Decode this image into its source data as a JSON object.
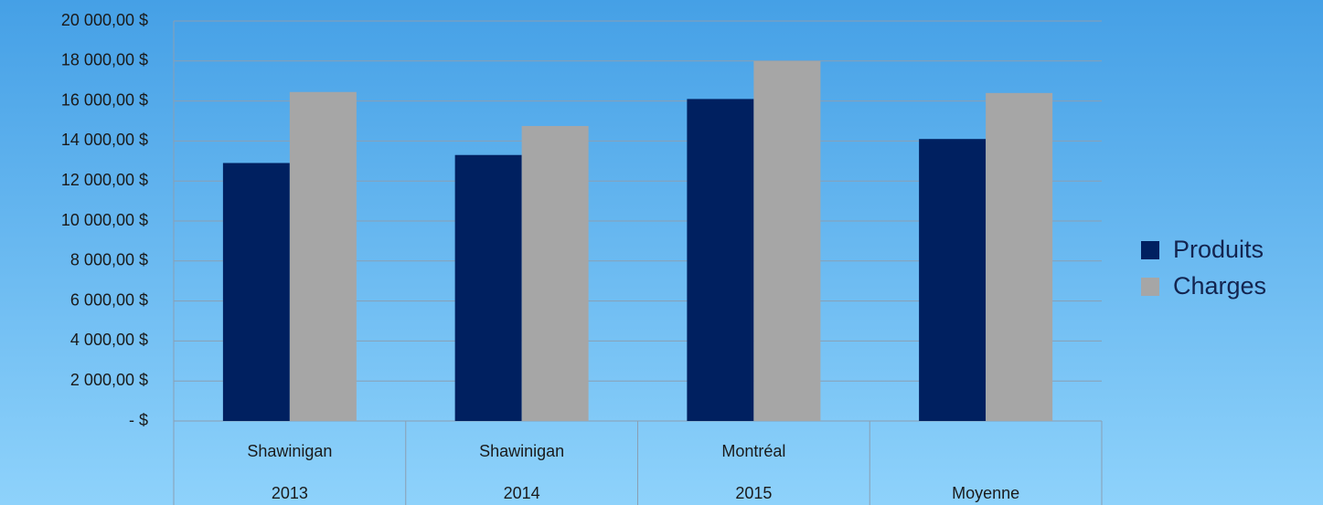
{
  "chart_data": {
    "type": "bar",
    "categories": [
      "Shawinigan",
      "Shawinigan",
      "Montréal",
      null
    ],
    "subcategories": [
      "2013",
      "2014",
      "2015",
      "Moyenne"
    ],
    "series": [
      {
        "name": "Produits",
        "color": "#002060",
        "values": [
          12900,
          13300,
          16100,
          14100
        ]
      },
      {
        "name": "Charges",
        "color": "#a6a6a6",
        "values": [
          16450,
          14750,
          18000,
          16400
        ]
      }
    ],
    "ylim": [
      0,
      20000
    ],
    "yticks": [
      {
        "value": 0,
        "label": "-   $"
      },
      {
        "value": 2000,
        "label": "2 000,00 $"
      },
      {
        "value": 4000,
        "label": "4 000,00 $"
      },
      {
        "value": 6000,
        "label": "6 000,00 $"
      },
      {
        "value": 8000,
        "label": "8 000,00 $"
      },
      {
        "value": 10000,
        "label": "10 000,00 $"
      },
      {
        "value": 12000,
        "label": "12 000,00 $"
      },
      {
        "value": 14000,
        "label": "14 000,00 $"
      },
      {
        "value": 16000,
        "label": "16 000,00 $"
      },
      {
        "value": 18000,
        "label": "18 000,00 $"
      },
      {
        "value": 20000,
        "label": "20 000,00 $"
      }
    ],
    "grid": true,
    "legend": "right"
  }
}
